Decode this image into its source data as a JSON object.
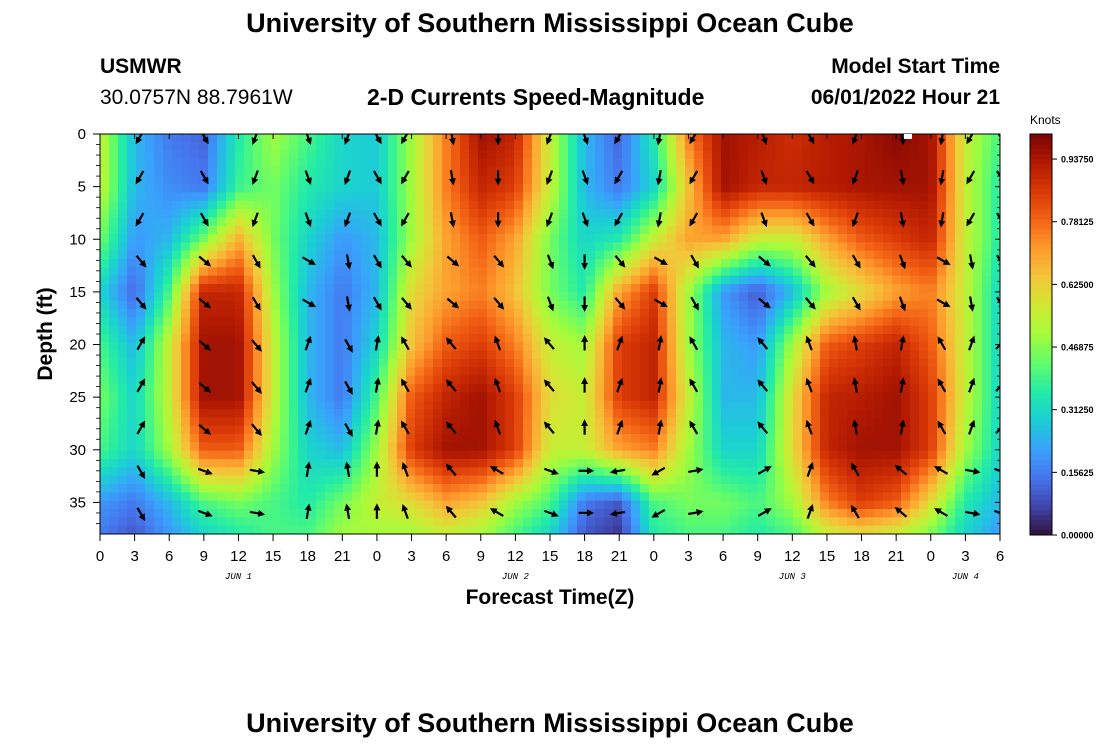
{
  "header": {
    "title": "University of Southern Mississippi Ocean Cube",
    "station_id": "USMWR",
    "station_coords": "30.0757N  88.7961W",
    "plot_title": "2-D Currents Speed-Magnitude",
    "start_label": "Model Start Time",
    "start_value": "06/01/2022 Hour 21"
  },
  "footer": {
    "title": "University of Southern Mississippi Ocean Cube"
  },
  "colorbar": {
    "units": "Knots",
    "ticks": [
      "0.93750",
      "0.78125",
      "0.62500",
      "0.46875",
      "0.31250",
      "0.15625",
      "0.00000"
    ],
    "tick_values": [
      0.9375,
      0.78125,
      0.625,
      0.46875,
      0.3125,
      0.15625,
      0.0
    ],
    "max": 1.0
  },
  "chart_data": {
    "type": "heatmap",
    "title": "2-D Currents Speed-Magnitude",
    "xlabel": "Forecast Time(Z)",
    "ylabel": "Depth (ft)",
    "x_range": [
      0,
      78
    ],
    "ylim": [
      0,
      38
    ],
    "x_ticks": [
      0,
      3,
      6,
      9,
      12,
      15,
      18,
      21,
      24,
      27,
      30,
      33,
      36,
      39,
      42,
      45,
      48,
      51,
      54,
      57,
      60,
      63,
      66,
      69,
      72,
      75,
      78
    ],
    "x_tick_labels": [
      "0",
      "3",
      "6",
      "9",
      "12",
      "15",
      "18",
      "21",
      "0",
      "3",
      "6",
      "9",
      "12",
      "15",
      "18",
      "21",
      "0",
      "3",
      "6",
      "9",
      "12",
      "15",
      "18",
      "21",
      "0",
      "3",
      "6"
    ],
    "y_ticks": [
      0,
      5,
      10,
      15,
      20,
      25,
      30,
      35
    ],
    "y_tick_labels": [
      "0",
      "5",
      "10",
      "15",
      "20",
      "25",
      "30",
      "35"
    ],
    "day_labels": [
      {
        "text": "JUN 1",
        "x": 12
      },
      {
        "text": "JUN 2",
        "x": 36
      },
      {
        "text": "JUN 3",
        "x": 60
      },
      {
        "text": "JUN 4",
        "x": 75
      }
    ],
    "colormap": [
      "#30123b",
      "#4145ab",
      "#4675ed",
      "#39a2fc",
      "#1bcfd4",
      "#24eca6",
      "#61fc6c",
      "#a4fc3b",
      "#d1e834",
      "#f3c63a",
      "#fe9b2d",
      "#f36315",
      "#d93806",
      "#b11901",
      "#7a0403"
    ],
    "speed_grid_hours": [
      0,
      3,
      6,
      9,
      12,
      15,
      18,
      21,
      24,
      27,
      30,
      33,
      36,
      39,
      42,
      45,
      48,
      51,
      54,
      57,
      60,
      63,
      66,
      69,
      72,
      75,
      78
    ],
    "speed_grid_depths": [
      0,
      5,
      10,
      15,
      20,
      25,
      30,
      35,
      38
    ],
    "speed_grid": [
      [
        0.55,
        0.25,
        0.15,
        0.12,
        0.35,
        0.5,
        0.4,
        0.3,
        0.28,
        0.5,
        0.75,
        0.95,
        0.9,
        0.55,
        0.25,
        0.12,
        0.35,
        0.75,
        0.95,
        0.92,
        0.88,
        0.92,
        0.94,
        0.98,
        0.95,
        0.55,
        0.4
      ],
      [
        0.55,
        0.25,
        0.18,
        0.15,
        0.38,
        0.45,
        0.35,
        0.3,
        0.28,
        0.5,
        0.75,
        0.9,
        0.85,
        0.55,
        0.25,
        0.15,
        0.3,
        0.65,
        0.95,
        0.9,
        0.9,
        0.92,
        0.94,
        0.95,
        0.95,
        0.55,
        0.35
      ],
      [
        0.45,
        0.2,
        0.25,
        0.45,
        0.68,
        0.45,
        0.3,
        0.2,
        0.25,
        0.5,
        0.7,
        0.8,
        0.7,
        0.45,
        0.3,
        0.35,
        0.55,
        0.7,
        0.7,
        0.55,
        0.55,
        0.7,
        0.8,
        0.85,
        0.9,
        0.55,
        0.35
      ],
      [
        0.3,
        0.12,
        0.4,
        0.9,
        0.9,
        0.5,
        0.25,
        0.15,
        0.25,
        0.6,
        0.7,
        0.75,
        0.65,
        0.45,
        0.35,
        0.7,
        0.85,
        0.5,
        0.2,
        0.1,
        0.25,
        0.5,
        0.6,
        0.7,
        0.75,
        0.55,
        0.3
      ],
      [
        0.4,
        0.25,
        0.55,
        0.95,
        0.95,
        0.55,
        0.25,
        0.15,
        0.3,
        0.65,
        0.8,
        0.85,
        0.75,
        0.55,
        0.5,
        0.85,
        0.9,
        0.5,
        0.25,
        0.2,
        0.5,
        0.8,
        0.85,
        0.9,
        0.8,
        0.55,
        0.3
      ],
      [
        0.45,
        0.3,
        0.55,
        0.95,
        0.95,
        0.55,
        0.25,
        0.15,
        0.4,
        0.8,
        0.9,
        0.95,
        0.85,
        0.6,
        0.55,
        0.85,
        0.9,
        0.55,
        0.25,
        0.25,
        0.6,
        0.9,
        0.92,
        0.95,
        0.85,
        0.55,
        0.3
      ],
      [
        0.4,
        0.3,
        0.5,
        0.8,
        0.8,
        0.5,
        0.3,
        0.25,
        0.5,
        0.85,
        0.95,
        0.95,
        0.85,
        0.55,
        0.55,
        0.7,
        0.75,
        0.5,
        0.3,
        0.3,
        0.6,
        0.9,
        0.95,
        0.95,
        0.85,
        0.5,
        0.3
      ],
      [
        0.2,
        0.15,
        0.25,
        0.4,
        0.45,
        0.4,
        0.35,
        0.45,
        0.55,
        0.6,
        0.7,
        0.65,
        0.5,
        0.4,
        0.15,
        0.1,
        0.4,
        0.45,
        0.45,
        0.4,
        0.5,
        0.75,
        0.85,
        0.8,
        0.6,
        0.35,
        0.25
      ],
      [
        0.15,
        0.1,
        0.2,
        0.3,
        0.35,
        0.4,
        0.4,
        0.5,
        0.5,
        0.5,
        0.55,
        0.5,
        0.4,
        0.3,
        0.1,
        0.05,
        0.35,
        0.4,
        0.4,
        0.35,
        0.4,
        0.55,
        0.6,
        0.55,
        0.45,
        0.3,
        0.2
      ]
    ],
    "arrow_hours": [
      3.5,
      9,
      13.5,
      18,
      21.5,
      24,
      26.5,
      30.5,
      34.5,
      39,
      42,
      45,
      48.5,
      51.5,
      57.5,
      61.5,
      65.5,
      69.5,
      73,
      75.5,
      78
    ],
    "arrow_depths": [
      0,
      4,
      8,
      12,
      16,
      20,
      24,
      28,
      32,
      36
    ],
    "arrow_bands": [
      {
        "depth_max": 10,
        "angles": [
          210,
          150,
          200,
          160,
          200,
          150,
          210,
          170,
          180,
          200,
          160,
          210,
          190,
          210,
          160,
          150,
          200,
          170,
          190,
          210,
          150
        ]
      },
      {
        "depth_max": 18,
        "angles": [
          140,
          130,
          150,
          120,
          170,
          150,
          140,
          130,
          140,
          160,
          180,
          140,
          120,
          150,
          130,
          140,
          150,
          160,
          120,
          170,
          150
        ]
      },
      {
        "depth_max": 29,
        "angles": [
          30,
          130,
          140,
          20,
          150,
          10,
          330,
          320,
          340,
          320,
          0,
          20,
          10,
          330,
          320,
          340,
          350,
          10,
          330,
          20,
          40
        ]
      },
      {
        "depth_max": 40,
        "angles": [
          150,
          110,
          100,
          10,
          350,
          0,
          340,
          320,
          300,
          110,
          90,
          260,
          240,
          80,
          60,
          20,
          330,
          310,
          300,
          100,
          110
        ]
      }
    ]
  }
}
